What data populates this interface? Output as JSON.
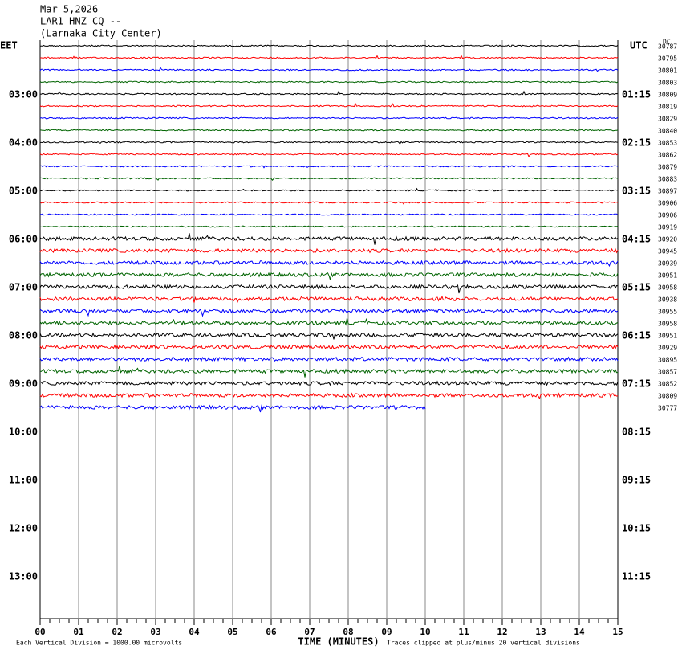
{
  "header": {
    "date": "Mar 5,2026",
    "station": "LAR1 HNZ CQ --",
    "location": "(Larnaka City Center)"
  },
  "left_axis": {
    "label": "EET",
    "hours": [
      "03:00",
      "04:00",
      "05:00",
      "06:00",
      "07:00",
      "08:00",
      "09:00",
      "10:00",
      "11:00",
      "12:00",
      "13:00"
    ]
  },
  "right_axis": {
    "label": "UTC",
    "hours": [
      "01:15",
      "02:15",
      "03:15",
      "04:15",
      "05:15",
      "06:15",
      "07:15",
      "08:15",
      "09:15",
      "10:15",
      "11:15"
    ]
  },
  "dc": {
    "label": "DC",
    "values": [
      30787,
      30795,
      30801,
      30803,
      30809,
      30819,
      30829,
      30840,
      30853,
      30862,
      30879,
      30883,
      30897,
      30906,
      30906,
      30919,
      30920,
      30945,
      30939,
      30951,
      30958,
      30938,
      30955,
      30958,
      30951,
      30929,
      30895,
      30857,
      30852,
      30809,
      30777
    ]
  },
  "x_axis": {
    "title": "TIME (MINUTES)",
    "ticks": [
      "00",
      "01",
      "02",
      "03",
      "04",
      "05",
      "06",
      "07",
      "08",
      "09",
      "10",
      "11",
      "12",
      "13",
      "14",
      "15"
    ]
  },
  "footer": {
    "division": "Each Vertical Division = 1000.00 microvolts",
    "clip": "Traces clipped at plus/minus 20 vertical divisions"
  }
}
